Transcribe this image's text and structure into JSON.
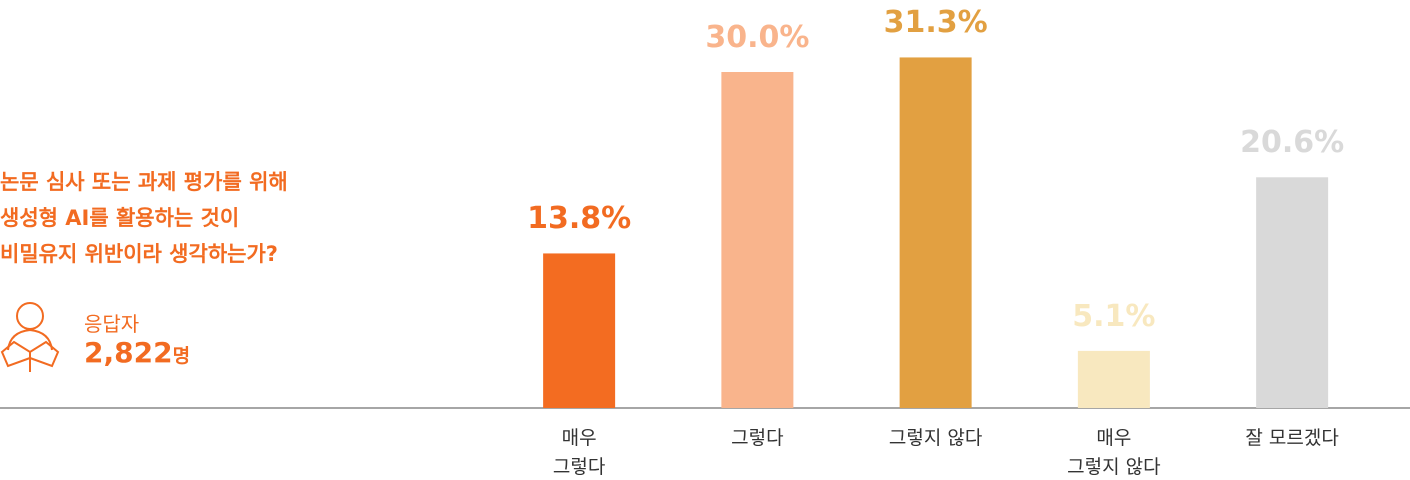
{
  "chart_data": {
    "type": "bar",
    "title": "논문 심사 또는 과제 평가를 위해\n생성형 AI를 활용하는 것이\n비밀유지 위반이라 생각하는가?",
    "respondents": {
      "label": "응답자",
      "count": "2,822",
      "unit": "명"
    },
    "categories": [
      "매우\n그렇다",
      "그렇다",
      "그렇지 않다",
      "매우\n그렇지 않다",
      "잘 모르겠다"
    ],
    "values": [
      13.8,
      30.0,
      31.3,
      5.1,
      20.6
    ],
    "value_labels": [
      "13.8%",
      "30.0%",
      "31.3%",
      "5.1%",
      "20.6%"
    ],
    "colors": [
      "#f36c21",
      "#f9b48c",
      "#e2a041",
      "#f8e8bf",
      "#d9d9d9"
    ],
    "ylim": [
      0,
      35
    ]
  }
}
